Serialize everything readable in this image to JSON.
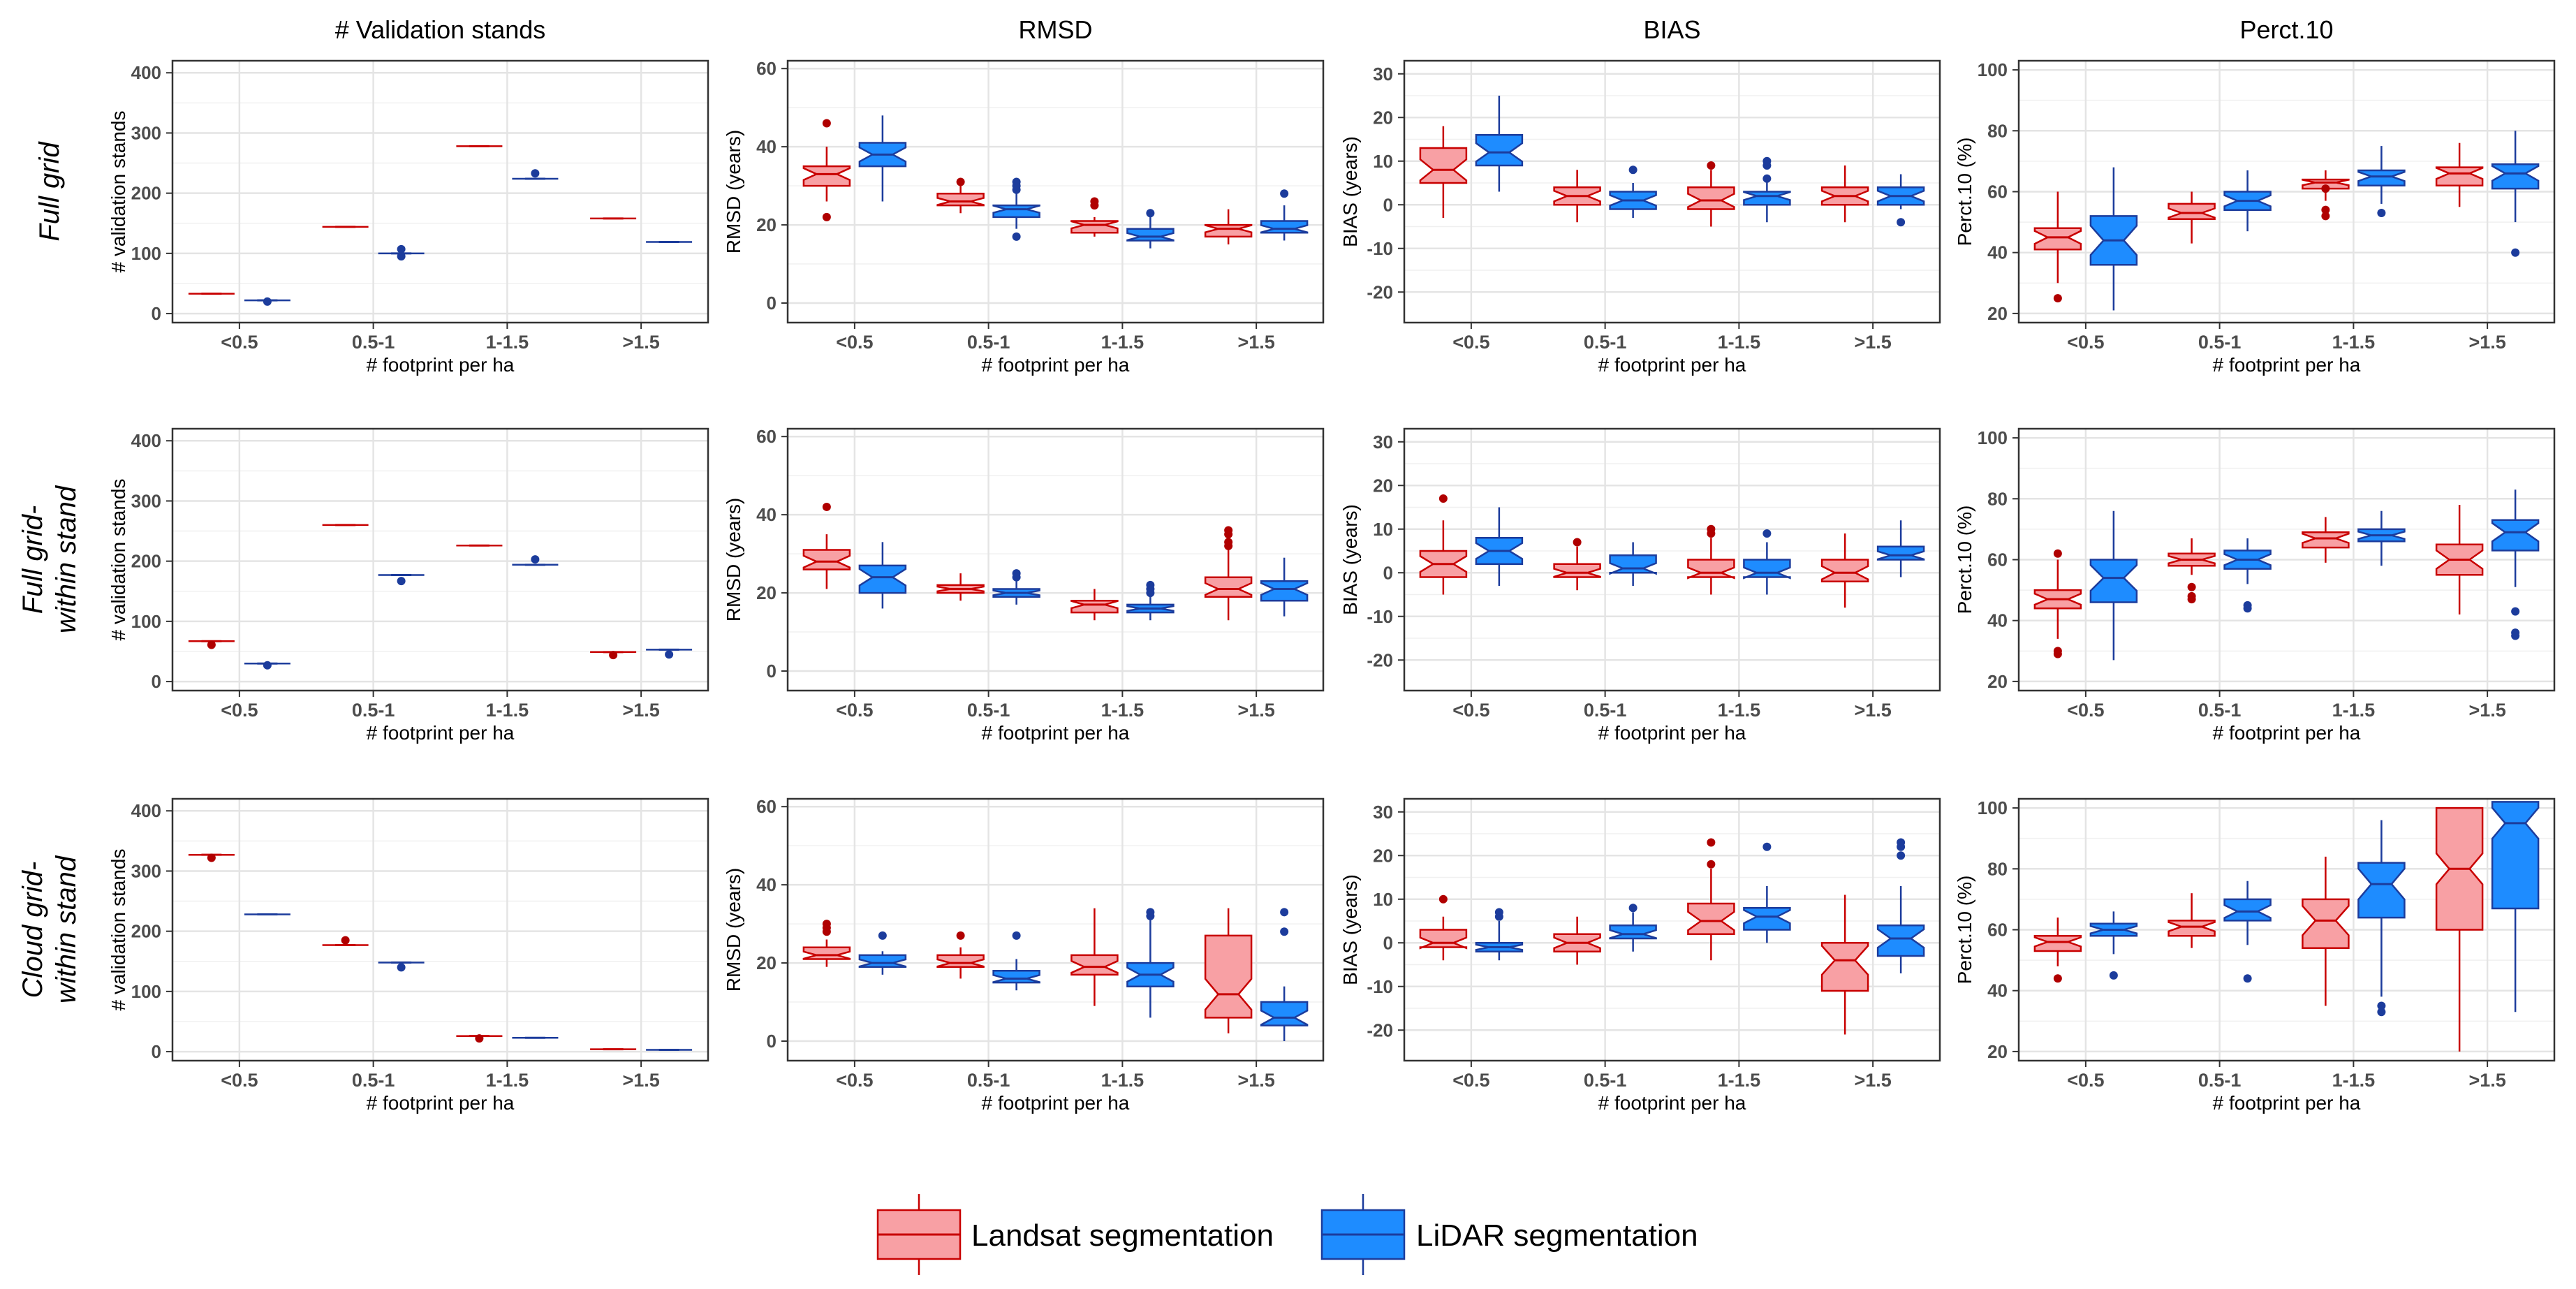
{
  "chart_data": {
    "type": "boxplot",
    "column_titles": [
      "# Validation stands",
      "RMSD",
      "BIAS",
      "Perct.10"
    ],
    "row_labels": [
      [
        "Full grid"
      ],
      [
        "Full grid-",
        "within stand"
      ],
      [
        "Cloud grid-",
        "within stand"
      ]
    ],
    "categories": [
      "<0.5",
      "0.5-1",
      "1-1.5",
      ">1.5"
    ],
    "xlabel": "# footprint per ha",
    "ylabels": [
      "# validation stands",
      "RMSD (years)",
      "BIAS (years)",
      "Perct.10 (%)"
    ],
    "y_ranges": [
      [
        -15,
        420
      ],
      [
        -5,
        62
      ],
      [
        -27,
        33
      ],
      [
        17,
        103
      ]
    ],
    "y_ticks": [
      [
        0,
        100,
        200,
        300,
        400
      ],
      [
        0,
        20,
        40,
        60
      ],
      [
        -20,
        -10,
        0,
        10,
        20,
        30
      ],
      [
        20,
        40,
        60,
        80,
        100
      ]
    ],
    "legend": {
      "position": "bottom",
      "entries": [
        "Landsat segmentation",
        "LiDAR segmentation"
      ]
    },
    "series_colors": {
      "landsat_fill": "#F8A0A4",
      "landsat_line": "#C80000",
      "lidar_fill": "#1E8CFF",
      "lidar_line": "#1C3C9C"
    },
    "panels": [
      [
        {
          "landsat": [
            [
              33,
              33,
              33,
              33,
              33
            ],
            [
              144,
              144,
              144,
              144,
              144
            ],
            [
              278,
              278,
              278,
              278,
              278
            ],
            [
              158,
              158,
              158,
              158,
              158
            ]
          ],
          "lidar": [
            [
              22,
              22,
              22,
              22,
              22
            ],
            [
              100,
              100,
              100,
              100,
              100
            ],
            [
              224,
              224,
              224,
              224,
              224
            ],
            [
              119,
              119,
              119,
              119,
              119
            ]
          ],
          "landsat_out": [
            [],
            [],
            [],
            []
          ],
          "lidar_out": [
            [
              20
            ],
            [
              95,
              107
            ],
            [
              233
            ],
            []
          ]
        },
        {
          "landsat": [
            [
              26,
              30,
              33,
              35,
              40
            ],
            [
              23,
              25,
              26,
              28,
              30
            ],
            [
              17,
              18,
              20,
              21,
              22
            ],
            [
              15,
              17,
              19,
              20,
              24
            ]
          ],
          "lidar": [
            [
              26,
              35,
              38,
              41,
              48
            ],
            [
              19,
              22,
              24,
              25,
              30
            ],
            [
              14,
              16,
              17,
              19,
              22
            ],
            [
              16,
              18,
              19,
              21,
              25
            ]
          ],
          "landsat_out": [
            [
              22,
              46
            ],
            [
              31
            ],
            [
              25,
              26
            ],
            []
          ],
          "lidar_out": [
            [],
            [
              17,
              29,
              30,
              31
            ],
            [
              23
            ],
            [
              28
            ]
          ]
        },
        {
          "landsat": [
            [
              -3,
              5,
              8,
              13,
              18
            ],
            [
              -4,
              0,
              2,
              4,
              8
            ],
            [
              -5,
              -1,
              1,
              4,
              8
            ],
            [
              -4,
              0,
              2,
              4,
              9
            ]
          ],
          "lidar": [
            [
              3,
              9,
              12,
              16,
              25
            ],
            [
              -3,
              -1,
              1,
              3,
              5
            ],
            [
              -4,
              0,
              2,
              3,
              6
            ],
            [
              -1,
              0,
              2,
              4,
              7
            ]
          ],
          "landsat_out": [
            [],
            [],
            [
              9
            ],
            []
          ],
          "lidar_out": [
            [],
            [
              8
            ],
            [
              6,
              9,
              10
            ],
            [
              -4
            ]
          ]
        },
        {
          "landsat": [
            [
              30,
              41,
              45,
              48,
              60
            ],
            [
              43,
              51,
              53,
              56,
              60
            ],
            [
              57,
              61,
              63,
              64,
              67
            ],
            [
              55,
              62,
              66,
              68,
              76
            ]
          ],
          "lidar": [
            [
              21,
              36,
              44,
              52,
              68
            ],
            [
              47,
              54,
              57,
              60,
              67
            ],
            [
              56,
              62,
              65,
              67,
              75
            ],
            [
              50,
              61,
              66,
              69,
              80
            ]
          ],
          "landsat_out": [
            [
              25
            ],
            [],
            [
              52,
              54,
              61
            ],
            []
          ],
          "lidar_out": [
            [],
            [],
            [
              53
            ],
            [
              40
            ]
          ]
        }
      ],
      [
        {
          "landsat": [
            [
              67,
              67,
              67,
              67,
              67
            ],
            [
              260,
              260,
              260,
              260,
              260
            ],
            [
              226,
              226,
              226,
              226,
              226
            ],
            [
              49,
              49,
              49,
              49,
              49
            ]
          ],
          "lidar": [
            [
              30,
              30,
              30,
              30,
              30
            ],
            [
              177,
              177,
              177,
              177,
              177
            ],
            [
              194,
              194,
              194,
              194,
              194
            ],
            [
              53,
              53,
              53,
              53,
              53
            ]
          ],
          "landsat_out": [
            [
              61
            ],
            [],
            [],
            [
              44
            ]
          ],
          "lidar_out": [
            [
              27
            ],
            [
              167
            ],
            [
              203
            ],
            [
              45
            ]
          ]
        },
        {
          "landsat": [
            [
              21,
              26,
              28,
              31,
              35
            ],
            [
              18,
              20,
              21,
              22,
              25
            ],
            [
              13,
              15,
              17,
              18,
              21
            ],
            [
              13,
              19,
              21,
              24,
              31
            ]
          ],
          "lidar": [
            [
              16,
              20,
              24,
              27,
              33
            ],
            [
              17,
              19,
              20,
              21,
              23
            ],
            [
              13,
              15,
              16,
              17,
              20
            ],
            [
              14,
              18,
              21,
              23,
              29
            ]
          ],
          "landsat_out": [
            [
              42
            ],
            [],
            [],
            [
              32,
              33,
              35,
              36
            ]
          ],
          "lidar_out": [
            [],
            [
              24,
              25
            ],
            [
              20,
              21,
              22
            ],
            []
          ]
        },
        {
          "landsat": [
            [
              -5,
              -1,
              2,
              5,
              12
            ],
            [
              -4,
              -1,
              0,
              2,
              6
            ],
            [
              -5,
              -1,
              0,
              3,
              8
            ],
            [
              -8,
              -2,
              0,
              3,
              9
            ]
          ],
          "lidar": [
            [
              -3,
              2,
              5,
              8,
              15
            ],
            [
              -3,
              0,
              1,
              4,
              7
            ],
            [
              -5,
              -1,
              0,
              3,
              7
            ],
            [
              -1,
              3,
              4,
              6,
              12
            ]
          ],
          "landsat_out": [
            [
              17
            ],
            [
              7
            ],
            [
              9,
              10
            ],
            []
          ],
          "lidar_out": [
            [],
            [],
            [
              9
            ],
            []
          ]
        },
        {
          "landsat": [
            [
              34,
              44,
              47,
              50,
              60
            ],
            [
              55,
              58,
              60,
              62,
              67
            ],
            [
              59,
              64,
              67,
              69,
              74
            ],
            [
              42,
              55,
              60,
              65,
              78
            ]
          ],
          "lidar": [
            [
              27,
              46,
              54,
              60,
              76
            ],
            [
              52,
              57,
              60,
              63,
              67
            ],
            [
              58,
              66,
              68,
              70,
              76
            ],
            [
              51,
              63,
              69,
              73,
              83
            ]
          ],
          "landsat_out": [
            [
              29,
              30,
              62
            ],
            [
              47,
              48,
              51
            ],
            [],
            []
          ],
          "lidar_out": [
            [],
            [
              44,
              45
            ],
            [],
            [
              35,
              36,
              43
            ]
          ]
        }
      ],
      [
        {
          "landsat": [
            [
              327,
              327,
              327,
              327,
              327
            ],
            [
              177,
              177,
              177,
              177,
              177
            ],
            [
              26,
              26,
              26,
              26,
              26
            ],
            [
              4,
              4,
              4,
              4,
              4
            ]
          ],
          "lidar": [
            [
              228,
              228,
              228,
              228,
              228
            ],
            [
              148,
              148,
              148,
              148,
              148
            ],
            [
              23,
              23,
              23,
              23,
              23
            ],
            [
              3,
              3,
              3,
              3,
              3
            ]
          ],
          "landsat_out": [
            [
              322
            ],
            [
              185
            ],
            [
              22
            ],
            []
          ],
          "lidar_out": [
            [],
            [
              140
            ],
            [],
            []
          ]
        },
        {
          "landsat": [
            [
              19,
              21,
              22,
              24,
              26
            ],
            [
              16,
              19,
              20,
              22,
              24
            ],
            [
              9,
              17,
              19,
              22,
              34
            ],
            [
              2,
              6,
              12,
              27,
              34
            ]
          ],
          "lidar": [
            [
              17,
              19,
              20,
              22,
              23
            ],
            [
              13,
              15,
              16,
              18,
              21
            ],
            [
              6,
              14,
              17,
              20,
              31
            ],
            [
              0,
              4,
              6,
              10,
              14
            ]
          ],
          "landsat_out": [
            [
              28,
              29,
              30
            ],
            [
              27
            ],
            [],
            []
          ],
          "lidar_out": [
            [
              27
            ],
            [
              27
            ],
            [
              32,
              33
            ],
            [
              28,
              33
            ]
          ]
        },
        {
          "landsat": [
            [
              -4,
              -1,
              0,
              3,
              6
            ],
            [
              -5,
              -2,
              0,
              2,
              6
            ],
            [
              -4,
              2,
              5,
              9,
              17
            ],
            [
              -21,
              -11,
              -4,
              0,
              11
            ]
          ],
          "lidar": [
            [
              -4,
              -2,
              -1,
              0,
              5
            ],
            [
              -2,
              1,
              2,
              4,
              7
            ],
            [
              0,
              3,
              6,
              8,
              13
            ],
            [
              -7,
              -3,
              1,
              4,
              13
            ]
          ],
          "landsat_out": [
            [
              10
            ],
            [],
            [
              18,
              23
            ],
            []
          ],
          "lidar_out": [
            [
              6,
              7
            ],
            [
              8
            ],
            [
              22
            ],
            [
              20,
              22,
              23
            ]
          ]
        },
        {
          "landsat": [
            [
              48,
              53,
              56,
              58,
              64
            ],
            [
              54,
              58,
              61,
              63,
              72
            ],
            [
              35,
              54,
              63,
              70,
              84
            ],
            [
              20,
              60,
              80,
              100,
              100
            ]
          ],
          "lidar": [
            [
              52,
              58,
              60,
              62,
              66
            ],
            [
              55,
              63,
              66,
              70,
              76
            ],
            [
              38,
              64,
              75,
              82,
              96
            ],
            [
              33,
              67,
              95,
              102,
              102
            ]
          ],
          "landsat_out": [
            [
              44
            ],
            [],
            [],
            []
          ],
          "lidar_out": [
            [
              45
            ],
            [
              44
            ],
            [
              33,
              35
            ],
            []
          ]
        }
      ]
    ]
  }
}
